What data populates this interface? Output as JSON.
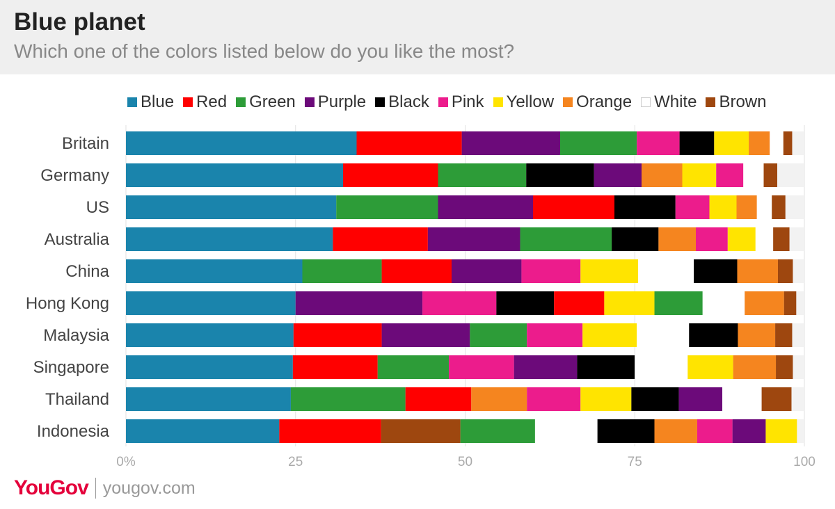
{
  "header": {
    "title": "Blue planet",
    "subtitle": "Which one of the colors listed below do you like the most?"
  },
  "footer": {
    "logo": "YouGov",
    "url": "yougov.com"
  },
  "chart_data": {
    "type": "bar",
    "orientation": "horizontal",
    "stacked": true,
    "xlim": [
      0,
      100
    ],
    "x_ticks": [
      "0%",
      "25",
      "50",
      "75",
      "100"
    ],
    "grid": true,
    "legend_position": "top",
    "legend": [
      "Blue",
      "Red",
      "Green",
      "Purple",
      "Black",
      "Pink",
      "Yellow",
      "Orange",
      "White",
      "Brown"
    ],
    "colors": {
      "Blue": "#1a84ac",
      "Red": "#ff0000",
      "Green": "#2d9c38",
      "Purple": "#6c0a7a",
      "Black": "#000000",
      "Pink": "#ec1c8c",
      "Yellow": "#ffe400",
      "Orange": "#f5851f",
      "White": "#ffffff",
      "Brown": "#9e470f"
    },
    "track_color": "#f2f2f2",
    "categories": [
      "Britain",
      "Germany",
      "US",
      "Australia",
      "China",
      "Hong Kong",
      "Malaysia",
      "Singapore",
      "Thailand",
      "Indonesia"
    ],
    "rows": [
      {
        "country": "Britain",
        "segments": [
          [
            "Blue",
            34
          ],
          [
            "Red",
            15.5
          ],
          [
            "Purple",
            14.5
          ],
          [
            "Green",
            11.3
          ],
          [
            "Pink",
            6.3
          ],
          [
            "Black",
            5.1
          ],
          [
            "Yellow",
            5.1
          ],
          [
            "Orange",
            3.1
          ],
          [
            "White",
            2
          ],
          [
            "Brown",
            1.3
          ]
        ]
      },
      {
        "country": "Germany",
        "segments": [
          [
            "Blue",
            32
          ],
          [
            "Red",
            14
          ],
          [
            "Green",
            13
          ],
          [
            "Black",
            10
          ],
          [
            "Purple",
            7
          ],
          [
            "Orange",
            6
          ],
          [
            "Yellow",
            5
          ],
          [
            "Pink",
            4
          ],
          [
            "White",
            3
          ],
          [
            "Brown",
            2
          ]
        ]
      },
      {
        "country": "US",
        "segments": [
          [
            "Blue",
            31
          ],
          [
            "Green",
            15
          ],
          [
            "Purple",
            14
          ],
          [
            "Red",
            12
          ],
          [
            "Black",
            9
          ],
          [
            "Pink",
            5
          ],
          [
            "Yellow",
            4
          ],
          [
            "Orange",
            3
          ],
          [
            "White",
            2.2
          ],
          [
            "Brown",
            2
          ]
        ]
      },
      {
        "country": "Australia",
        "segments": [
          [
            "Blue",
            30.5
          ],
          [
            "Red",
            14
          ],
          [
            "Purple",
            13.6
          ],
          [
            "Green",
            13.5
          ],
          [
            "Black",
            6.9
          ],
          [
            "Orange",
            5.5
          ],
          [
            "Pink",
            4.7
          ],
          [
            "Yellow",
            4.1
          ],
          [
            "White",
            2.6
          ],
          [
            "Brown",
            2.4
          ]
        ]
      },
      {
        "country": "China",
        "segments": [
          [
            "Blue",
            26
          ],
          [
            "Green",
            11.7
          ],
          [
            "Red",
            10.3
          ],
          [
            "Purple",
            10.3
          ],
          [
            "Pink",
            8.7
          ],
          [
            "Yellow",
            8.5
          ],
          [
            "White",
            8.2
          ],
          [
            "Black",
            6.4
          ],
          [
            "Orange",
            6
          ],
          [
            "Brown",
            2.2
          ]
        ]
      },
      {
        "country": "Hong Kong",
        "segments": [
          [
            "Blue",
            25
          ],
          [
            "Purple",
            18.7
          ],
          [
            "Pink",
            10.9
          ],
          [
            "Black",
            8.5
          ],
          [
            "Red",
            7.4
          ],
          [
            "Yellow",
            7.4
          ],
          [
            "Green",
            7.1
          ],
          [
            "White",
            6.2
          ],
          [
            "Orange",
            5.8
          ],
          [
            "Brown",
            1.8
          ]
        ]
      },
      {
        "country": "Malaysia",
        "segments": [
          [
            "Blue",
            24.7
          ],
          [
            "Red",
            13
          ],
          [
            "Purple",
            13
          ],
          [
            "Green",
            8.4
          ],
          [
            "Pink",
            8.2
          ],
          [
            "Yellow",
            8
          ],
          [
            "White",
            7.7
          ],
          [
            "Black",
            7.2
          ],
          [
            "Orange",
            5.5
          ],
          [
            "Brown",
            2.5
          ]
        ]
      },
      {
        "country": "Singapore",
        "segments": [
          [
            "Blue",
            24.6
          ],
          [
            "Red",
            12.5
          ],
          [
            "Green",
            10.5
          ],
          [
            "Pink",
            9.6
          ],
          [
            "Purple",
            9.3
          ],
          [
            "Black",
            8.5
          ],
          [
            "White",
            7.8
          ],
          [
            "Yellow",
            6.7
          ],
          [
            "Orange",
            6.3
          ],
          [
            "Brown",
            2.5
          ]
        ]
      },
      {
        "country": "Thailand",
        "segments": [
          [
            "Blue",
            24.3
          ],
          [
            "Green",
            16.9
          ],
          [
            "Red",
            9.7
          ],
          [
            "Orange",
            8.2
          ],
          [
            "Pink",
            7.9
          ],
          [
            "Yellow",
            7.5
          ],
          [
            "Black",
            7
          ],
          [
            "Purple",
            6.4
          ],
          [
            "White",
            5.8
          ],
          [
            "Brown",
            4.4
          ]
        ]
      },
      {
        "country": "Indonesia",
        "segments": [
          [
            "Blue",
            22.6
          ],
          [
            "Red",
            15
          ],
          [
            "Brown",
            11.7
          ],
          [
            "Green",
            11
          ],
          [
            "White",
            9.2
          ],
          [
            "Black",
            8.4
          ],
          [
            "Orange",
            6.3
          ],
          [
            "Pink",
            5.2
          ],
          [
            "Purple",
            4.9
          ],
          [
            "Yellow",
            4.6
          ]
        ]
      }
    ]
  }
}
